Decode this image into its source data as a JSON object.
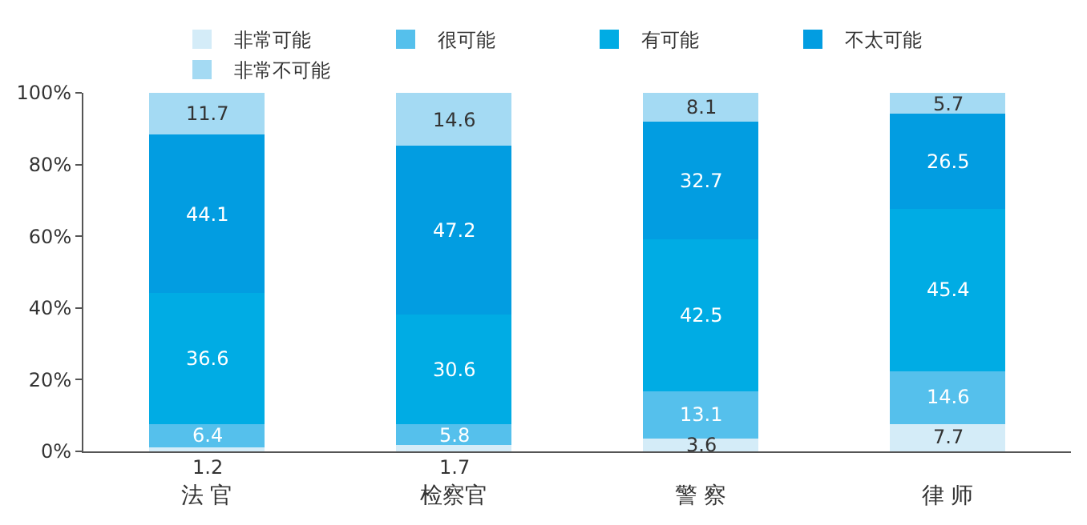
{
  "chart_data": {
    "type": "bar",
    "stacked": true,
    "categories": [
      "法 官",
      "检察官",
      "警 察",
      "律 师"
    ],
    "series": [
      {
        "name": "非常可能",
        "color": "#d4ecf8",
        "values": [
          1.2,
          1.7,
          3.6,
          7.7
        ]
      },
      {
        "name": "很可能",
        "color": "#55c0ec",
        "values": [
          6.4,
          5.8,
          13.1,
          14.6
        ]
      },
      {
        "name": "有可能",
        "color": "#00ace4",
        "values": [
          36.6,
          30.6,
          42.5,
          45.4
        ]
      },
      {
        "name": "不太可能",
        "color": "#029de1",
        "values": [
          44.1,
          47.2,
          32.7,
          26.5
        ]
      },
      {
        "name": "非常不可能",
        "color": "#a4daf3",
        "values": [
          11.7,
          14.6,
          8.1,
          5.7
        ]
      }
    ],
    "ylim": [
      0,
      100
    ],
    "yticks": [
      {
        "value": 0,
        "label": "0%"
      },
      {
        "value": 20,
        "label": "20%"
      },
      {
        "value": 40,
        "label": "40%"
      },
      {
        "value": 60,
        "label": "60%"
      },
      {
        "value": 80,
        "label": "80%"
      },
      {
        "value": 100,
        "label": "100%"
      }
    ],
    "data_labels": true,
    "legend": "top"
  }
}
